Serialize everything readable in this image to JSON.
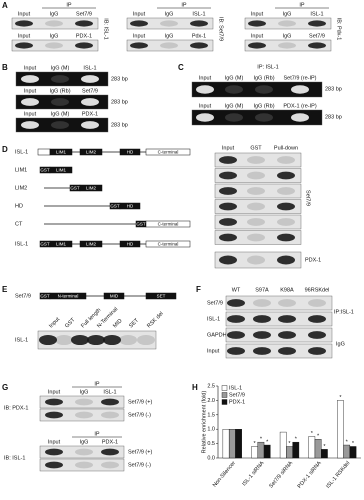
{
  "panels": {
    "A": {
      "letter": "A",
      "blots": [
        {
          "ip": "IP",
          "rows": [
            [
              "Input",
              "IgG",
              "Set7/9"
            ],
            [
              "Input",
              "IgG",
              "PDX-1"
            ]
          ],
          "ib": "IB: ISL-1"
        },
        {
          "ip": "IP",
          "rows": [
            [
              "Input",
              "IgG",
              "ISL-1"
            ],
            [
              "Input",
              "IgG",
              "Pdx-1"
            ]
          ],
          "ib": "IB: Set7/9"
        },
        {
          "ip": "IP",
          "rows": [
            [
              "Input",
              "IgG",
              "ISL-1"
            ],
            [
              "Input",
              "IgG",
              "Set7/9"
            ]
          ],
          "ib": "IB: Pdx-1"
        }
      ]
    },
    "B": {
      "letter": "B",
      "rows": [
        {
          "lanes": [
            "Input",
            "IgG (M)",
            "ISL-1"
          ],
          "size": "283 bp"
        },
        {
          "lanes": [
            "Input",
            "IgG (Rb)",
            "Set7/9"
          ],
          "size": "283 bp"
        },
        {
          "lanes": [
            "Input",
            "IgG (M)",
            "PDX-1"
          ],
          "size": "283 bp"
        }
      ]
    },
    "C": {
      "letter": "C",
      "title": "IP: ISL-1",
      "rows": [
        {
          "lanes": [
            "Input",
            "IgG (M)",
            "IgG (Rb)",
            "Set7/9 (re-IP)"
          ],
          "size": "283 bp"
        },
        {
          "lanes": [
            "Input",
            "IgG (M)",
            "IgG (Rb)",
            "PDX-1 (re-IP)"
          ],
          "size": "283 bp"
        }
      ]
    },
    "D": {
      "letter": "D",
      "constructs": [
        {
          "name": "ISL-1",
          "domains": [
            "LIM1",
            "LIM2",
            "HD",
            "C-terminal"
          ]
        },
        {
          "name": "LIM1",
          "domains": [
            "GST",
            "LIM1"
          ]
        },
        {
          "name": "LIM2",
          "domains": [
            "GST",
            "LIM2"
          ]
        },
        {
          "name": "HD",
          "domains": [
            "GST",
            "HD"
          ]
        },
        {
          "name": "CT",
          "domains": [
            "GST",
            "C-terminal"
          ]
        },
        {
          "name": "ISL-1",
          "domains": [
            "GST",
            "LIM1",
            "LIM2",
            "HD",
            "C-terminal"
          ]
        }
      ],
      "blot_header": [
        "Input",
        "GST",
        "Pull-down"
      ],
      "blot_labels": [
        "Set7/9",
        "PDX-1"
      ]
    },
    "E": {
      "letter": "E",
      "construct": {
        "name": "Set7/9",
        "domains": [
          "GST",
          "N-terminal",
          "MID",
          "SET"
        ]
      },
      "lanes": [
        "Input",
        "GST",
        "Full length",
        "N-Terminal",
        "MID",
        "SET",
        "RSK del"
      ],
      "blot_label": "ISL-1"
    },
    "F": {
      "letter": "F",
      "lanes": [
        "WT",
        "S97A",
        "K98A",
        "96RSKdel"
      ],
      "rows": [
        "Set7/9",
        "ISL-1",
        "GAPDH",
        "Input"
      ],
      "ip_label": "IP:ISL-1",
      "igg_label": "IgG"
    },
    "G": {
      "letter": "G",
      "blots": [
        {
          "ip": "IP",
          "lanes": [
            "Input",
            "IgG",
            "ISL-1"
          ],
          "ib": "IB: PDX-1",
          "rows": [
            "Set7/9 (+)",
            "Set7/9 (-)"
          ]
        },
        {
          "ip": "IP",
          "lanes": [
            "Input",
            "IgG",
            "PDX-1"
          ],
          "ib": "IB: ISL-1",
          "rows": [
            "Set7/9 (+)",
            "Set7/9 (-)"
          ]
        }
      ]
    },
    "H": {
      "letter": "H"
    }
  },
  "chart_data": {
    "type": "bar",
    "ylabel": "Relative enrichment (fold)",
    "categories": [
      "Non-Silencer",
      "ISL-1 siRNA",
      "Set7/9 siRNA",
      "PDX-1 siRNA",
      "ISL-1 RSKdel"
    ],
    "series": [
      {
        "name": "ISL-1",
        "color": "#ffffff",
        "values": [
          1.0,
          0.4,
          0.9,
          0.75,
          2.0
        ],
        "marks": [
          null,
          "*",
          null,
          "*",
          "*"
        ]
      },
      {
        "name": "Set7/9",
        "color": "#999999",
        "values": [
          1.0,
          0.55,
          0.4,
          0.65,
          0.45
        ],
        "marks": [
          null,
          "*",
          "*",
          "*",
          "*"
        ]
      },
      {
        "name": "PDX-1",
        "color": "#111111",
        "values": [
          1.0,
          0.45,
          0.55,
          0.3,
          0.4
        ],
        "marks": [
          null,
          "*",
          "*",
          "*",
          "*"
        ]
      }
    ],
    "ylim": [
      0,
      2.5
    ],
    "yticks": [
      {
        "value": 0,
        "label": "0.0"
      },
      0.5,
      {
        "value": 1,
        "label": "1.0"
      },
      1.5,
      {
        "value": 2,
        "label": "2.0"
      },
      2.5
    ],
    "legend": "upper-left"
  }
}
